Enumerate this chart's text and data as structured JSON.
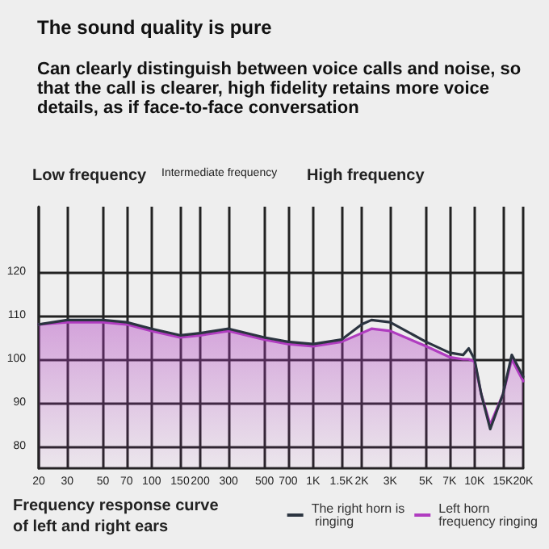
{
  "chart_data": {
    "type": "line",
    "title": "The sound quality is pure",
    "subtitle": "Can clearly distinguish between voice calls and noise, so that the call is clearer, high fidelity retains more voice details, as if face-to-face conversation",
    "annotations": [
      "Low frequency",
      "Intermediate frequency",
      "High frequency",
      "Frequency response curve of left and right ears"
    ],
    "series": [
      {
        "name": "The right horn is ringing",
        "color": "#2b3440",
        "x": [
          20,
          30,
          50,
          70,
          100,
          150,
          200,
          300,
          500,
          700,
          1000,
          1500,
          2000,
          2300,
          3000,
          5000,
          7000,
          8500,
          9200,
          10000,
          11000,
          12500,
          15000,
          17000,
          20000
        ],
        "values": [
          108,
          109,
          109,
          108.5,
          107,
          105.5,
          106,
          107,
          105,
          104,
          103.5,
          104.5,
          108,
          109,
          108.5,
          104,
          101.5,
          101,
          102.5,
          100,
          92,
          84,
          92,
          101,
          96
        ]
      },
      {
        "name": "Left horn frequency ringing",
        "color": "#b03cc0",
        "type": "area",
        "x": [
          20,
          30,
          50,
          70,
          100,
          150,
          200,
          300,
          500,
          700,
          1000,
          1500,
          2000,
          2300,
          3000,
          5000,
          7000,
          8500,
          9200,
          10000,
          11000,
          12500,
          15000,
          17000,
          20000
        ],
        "values": [
          108,
          108.5,
          108.5,
          108,
          106.5,
          105,
          105.5,
          106.5,
          104.5,
          103.5,
          103,
          104,
          106,
          107,
          106.5,
          103,
          100.5,
          100,
          100,
          99.5,
          92,
          85,
          92,
          100,
          95
        ]
      }
    ],
    "log": "x",
    "xlim": [
      20,
      20000
    ],
    "xticks": [
      20,
      30,
      50,
      70,
      100,
      150,
      200,
      300,
      500,
      700,
      {
        "value": 1000,
        "label": "1K"
      },
      {
        "value": 1500,
        "label": "1.5K"
      },
      {
        "value": 2000,
        "label": "2K"
      },
      {
        "value": 3000,
        "label": "3K"
      },
      {
        "value": 5000,
        "label": "5K"
      },
      {
        "value": 7000,
        "label": "7K"
      },
      {
        "value": 10000,
        "label": "10K"
      },
      {
        "value": 15000,
        "label": "15K"
      },
      {
        "value": 20000,
        "label": "20K"
      }
    ],
    "ylim": [
      75,
      135
    ],
    "yticks": [
      80,
      90,
      100,
      110,
      120
    ],
    "grid": true,
    "legend": "bottom right",
    "marker": "none",
    "line_style": "solid"
  }
}
